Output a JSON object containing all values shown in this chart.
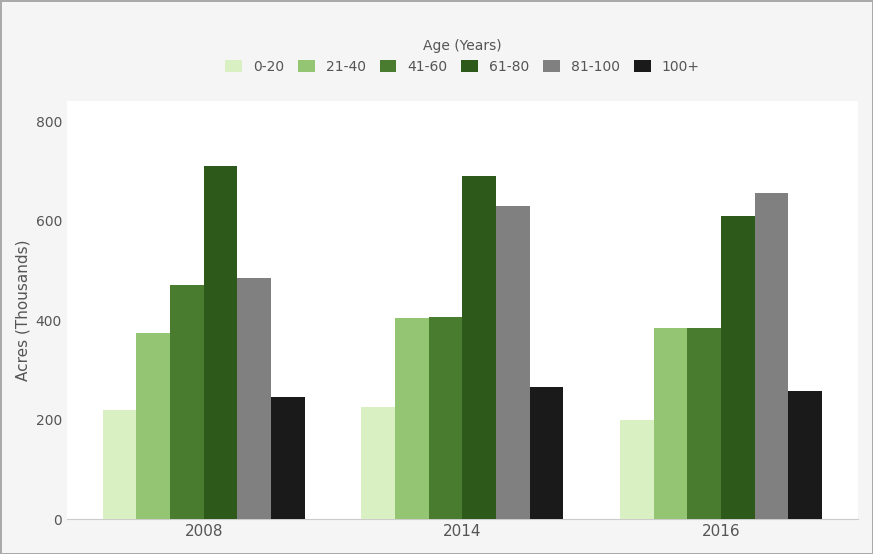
{
  "title": "Age (Years)",
  "ylabel": "Acres (Thousands)",
  "years": [
    "2008",
    "2014",
    "2016"
  ],
  "age_groups": [
    "0-20",
    "21-40",
    "41-60",
    "61-80",
    "81-100",
    "100+"
  ],
  "values": {
    "0-20": [
      220,
      225,
      200
    ],
    "21-40": [
      375,
      405,
      385
    ],
    "41-60": [
      470,
      407,
      385
    ],
    "61-80": [
      710,
      690,
      610
    ],
    "81-100": [
      485,
      630,
      655
    ],
    "100+": [
      245,
      265,
      258
    ]
  },
  "colors": {
    "0-20": "#d9f0c2",
    "21-40": "#93c572",
    "41-60": "#4a7c2f",
    "61-80": "#2d5a1b",
    "81-100": "#808080",
    "100+": "#1a1a1a"
  },
  "ylim": [
    0,
    840
  ],
  "yticks": [
    0,
    200,
    400,
    600,
    800
  ],
  "bar_width": 0.13,
  "background_color": "#f5f5f5",
  "plot_background": "#ffffff",
  "grid_color": "#ffffff",
  "legend_title": "Age (Years)"
}
